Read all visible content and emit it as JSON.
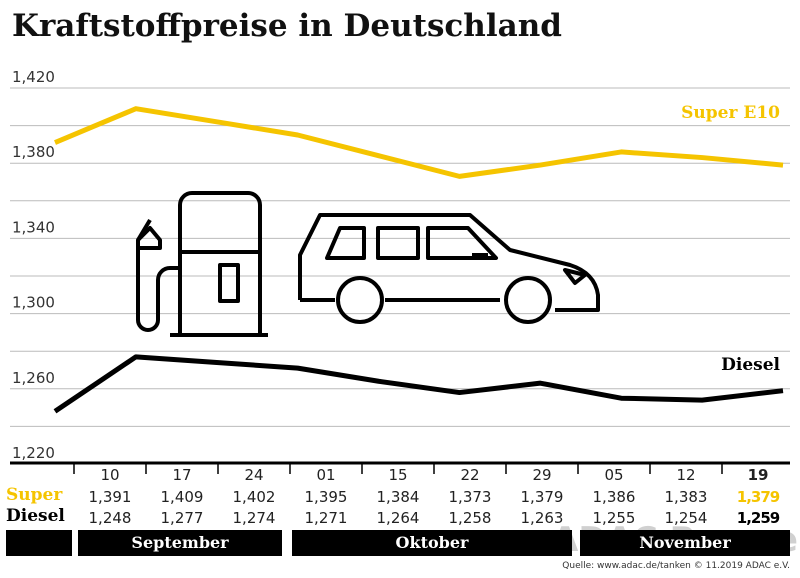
{
  "chart_data": {
    "type": "line",
    "title": "Kraftstoffpreise in Deutschland",
    "categories": [
      "10",
      "17",
      "24",
      "01",
      "15",
      "22",
      "29",
      "05",
      "12",
      "19"
    ],
    "months": [
      "September",
      "Oktober",
      "November"
    ],
    "series": [
      {
        "name": "Super E10",
        "row_label": "Super",
        "color": "#f5c400",
        "values": [
          1.391,
          1.409,
          1.402,
          1.395,
          1.384,
          1.373,
          1.379,
          1.386,
          1.383,
          1.379
        ],
        "labels": [
          "1,391",
          "1,409",
          "1,402",
          "1,395",
          "1,384",
          "1,373",
          "1,379",
          "1,386",
          "1,383",
          "1,379"
        ]
      },
      {
        "name": "Diesel",
        "row_label": "Diesel",
        "color": "#000000",
        "values": [
          1.248,
          1.277,
          1.274,
          1.271,
          1.264,
          1.258,
          1.263,
          1.255,
          1.254,
          1.259
        ],
        "labels": [
          "1,248",
          "1,277",
          "1,274",
          "1,271",
          "1,264",
          "1,258",
          "1,263",
          "1,255",
          "1,254",
          "1,259"
        ]
      }
    ],
    "yticks": [
      "1,420",
      "1,380",
      "1,340",
      "1,300",
      "1,260",
      "1,220"
    ],
    "ylim": [
      1.22,
      1.42
    ],
    "grid": true
  },
  "source": "Quelle: www.adac.de/tanken   © 11.2019  ADAC e.V.",
  "watermark": "ADAC Presse"
}
